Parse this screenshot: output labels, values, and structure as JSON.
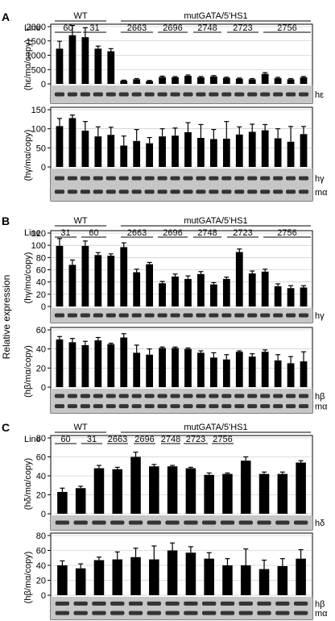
{
  "figure": {
    "title": "",
    "panels": [
      {
        "letter": "A",
        "line_label": "Line",
        "wt_label": "WT",
        "mut_label": "mutGATA/5'HS1",
        "group_labels": [
          "60",
          "31",
          "2663",
          "2696",
          "2748",
          "2723",
          "2756"
        ]
      },
      {
        "letter": "B",
        "line_label": "Line",
        "wt_label": "WT",
        "mut_label": "mutGATA/5'HS1",
        "group_labels": [
          "31",
          "60",
          "2663",
          "2696",
          "2748",
          "2723",
          "2756"
        ]
      },
      {
        "letter": "C",
        "line_label": "Line",
        "wt_label": "WT",
        "mut_label": "mutGATA/5'HS1",
        "group_labels": [
          "60",
          "31",
          "2663",
          "2696",
          "2748",
          "2723",
          "2756"
        ]
      }
    ],
    "side_label": "Relative expression",
    "gel_labels": {
      "A1": [
        "hε"
      ],
      "A2": [
        "hγ",
        "mα"
      ],
      "B1": [
        "hγ"
      ],
      "B2": [
        "hβ",
        "mα"
      ],
      "C1": [
        "hδ"
      ],
      "C2": [
        "hβ",
        "mα"
      ]
    }
  },
  "chart_data": [
    {
      "id": "A1",
      "type": "bar",
      "title": "",
      "xlabel": "",
      "ylabel": "(hε/mα/copy)",
      "ylim": [
        0,
        2000
      ],
      "yticks": [
        0,
        500,
        1000,
        1500,
        2000
      ],
      "grid": true,
      "categories": [
        "60",
        "60",
        "60",
        "31",
        "31",
        "2663",
        "2663",
        "2663",
        "2696",
        "2696",
        "2696",
        "2748",
        "2748",
        "2748",
        "2723",
        "2723",
        "2723",
        "2756",
        "2756",
        "2756"
      ],
      "values": [
        1230,
        1700,
        1630,
        1230,
        1140,
        110,
        160,
        100,
        240,
        230,
        280,
        230,
        260,
        210,
        180,
        160,
        350,
        200,
        160,
        230
      ],
      "errors": [
        260,
        340,
        330,
        90,
        90,
        20,
        25,
        20,
        30,
        25,
        30,
        30,
        30,
        25,
        25,
        25,
        45,
        30,
        25,
        30
      ]
    },
    {
      "id": "A2",
      "type": "bar",
      "title": "",
      "xlabel": "",
      "ylabel": "(hγ/mα/copy)",
      "ylim": [
        0,
        150
      ],
      "yticks": [
        0,
        50,
        100,
        150
      ],
      "grid": true,
      "categories": [
        "60",
        "60",
        "60",
        "31",
        "31",
        "2663",
        "2663",
        "2663",
        "2696",
        "2696",
        "2696",
        "2748",
        "2748",
        "2748",
        "2723",
        "2723",
        "2723",
        "2756",
        "2756",
        "2756"
      ],
      "values": [
        107,
        128,
        95,
        80,
        84,
        56,
        68,
        62,
        80,
        82,
        91,
        76,
        73,
        74,
        85,
        92,
        96,
        75,
        66,
        86
      ],
      "errors": [
        20,
        8,
        24,
        25,
        20,
        25,
        30,
        15,
        20,
        20,
        25,
        35,
        25,
        45,
        20,
        20,
        15,
        25,
        40,
        20
      ]
    },
    {
      "id": "B1",
      "type": "bar",
      "title": "",
      "xlabel": "",
      "ylabel": "(hγ/mα/copy)",
      "ylim": [
        0,
        120
      ],
      "yticks": [
        0,
        20,
        40,
        60,
        80,
        100,
        120
      ],
      "grid": true,
      "categories": [
        "31",
        "31",
        "60",
        "60",
        "60",
        "2663",
        "2663",
        "2663",
        "2696",
        "2696",
        "2696",
        "2748",
        "2748",
        "2748",
        "2723",
        "2723",
        "2723",
        "2756",
        "2756",
        "2756"
      ],
      "values": [
        99,
        68,
        99,
        84,
        83,
        97,
        56,
        69,
        38,
        49,
        45,
        53,
        36,
        45,
        89,
        54,
        57,
        33,
        30,
        31
      ],
      "errors": [
        12,
        8,
        8,
        4,
        3,
        7,
        5,
        3,
        3,
        4,
        5,
        4,
        3,
        3,
        5,
        4,
        4,
        4,
        4,
        3
      ]
    },
    {
      "id": "B2",
      "type": "bar",
      "title": "",
      "xlabel": "",
      "ylabel": "(hβ/mα/copy)",
      "ylim": [
        0,
        60
      ],
      "yticks": [
        0,
        20,
        40,
        60
      ],
      "grid": true,
      "categories": [
        "31",
        "31",
        "60",
        "60",
        "60",
        "2663",
        "2663",
        "2663",
        "2696",
        "2696",
        "2696",
        "2748",
        "2748",
        "2748",
        "2723",
        "2723",
        "2723",
        "2756",
        "2756",
        "2756"
      ],
      "values": [
        50,
        47,
        44,
        49,
        45,
        52,
        36,
        34,
        41,
        41,
        40,
        36,
        31,
        29,
        37,
        32,
        37,
        28,
        25,
        27
      ],
      "errors": [
        3,
        4,
        4,
        3,
        1,
        4,
        8,
        6,
        1,
        1,
        1,
        2,
        5,
        5,
        1,
        3,
        2,
        6,
        7,
        10
      ]
    },
    {
      "id": "C1",
      "type": "bar",
      "title": "",
      "xlabel": "",
      "ylabel": "(hδ/mα/copy)",
      "ylim": [
        0,
        80
      ],
      "yticks": [
        0,
        20,
        40,
        60,
        80
      ],
      "grid": true,
      "categories": [
        "60",
        "60",
        "31",
        "31",
        "2663",
        "2663",
        "2696",
        "2696",
        "2748",
        "2748",
        "2723",
        "2723",
        "2756",
        "2756"
      ],
      "values": [
        23,
        27,
        48,
        47,
        60,
        50,
        50,
        48,
        41,
        42,
        56,
        42,
        42,
        54
      ],
      "errors": [
        4,
        2,
        3,
        2,
        5,
        2,
        1,
        1,
        2,
        1,
        4,
        2,
        2,
        2
      ]
    },
    {
      "id": "C2",
      "type": "bar",
      "title": "",
      "xlabel": "",
      "ylabel": "(hβ/mα/copy)",
      "ylim": [
        0,
        80
      ],
      "yticks": [
        0,
        20,
        40,
        60,
        80
      ],
      "grid": true,
      "categories": [
        "60",
        "60",
        "31",
        "31",
        "2663",
        "2663",
        "2696",
        "2696",
        "2748",
        "2748",
        "2723",
        "2723",
        "2756",
        "2756"
      ],
      "values": [
        40,
        36,
        47,
        48,
        51,
        48,
        60,
        57,
        49,
        40,
        40,
        35,
        39,
        49
      ],
      "errors": [
        6,
        6,
        4,
        10,
        12,
        18,
        10,
        8,
        8,
        9,
        22,
        12,
        10,
        12
      ]
    }
  ]
}
